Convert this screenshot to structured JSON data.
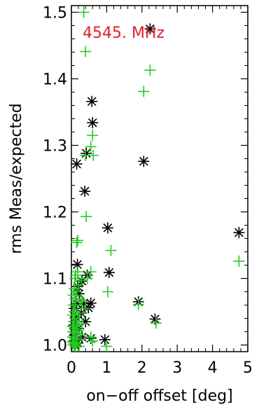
{
  "chart_data": {
    "type": "scatter",
    "annotation": {
      "text": "4545. MHz",
      "color": "#e0202a"
    },
    "xlabel": "on−off offset [deg]",
    "ylabel": "rms Meas/expected",
    "xlim": [
      0,
      5
    ],
    "ylim": [
      0.99,
      1.51
    ],
    "x_ticks": [
      0,
      1,
      2,
      3,
      4,
      5
    ],
    "x_tick_labels": [
      "0",
      "1",
      "2",
      "3",
      "4",
      "5"
    ],
    "y_ticks": [
      1.0,
      1.1,
      1.2,
      1.3,
      1.4,
      1.5
    ],
    "y_tick_labels": [
      "1.0",
      "1.1",
      "1.2",
      "1.3",
      "1.4",
      "1.5"
    ],
    "grid": false,
    "series": [
      {
        "marker": "asterisk",
        "color": "#000000",
        "points": [
          [
            2.23,
            1.475
          ],
          [
            0.58,
            1.366
          ],
          [
            0.6,
            1.334
          ],
          [
            0.42,
            1.288
          ],
          [
            0.15,
            1.272
          ],
          [
            2.05,
            1.276
          ],
          [
            0.38,
            1.231
          ],
          [
            1.03,
            1.176
          ],
          [
            4.75,
            1.169
          ],
          [
            0.17,
            1.121
          ],
          [
            1.07,
            1.109
          ],
          [
            0.45,
            1.105
          ],
          [
            0.3,
            1.096
          ],
          [
            0.18,
            1.088
          ],
          [
            0.22,
            1.077
          ],
          [
            1.9,
            1.065
          ],
          [
            0.35,
            1.062
          ],
          [
            0.15,
            1.062
          ],
          [
            0.48,
            1.056
          ],
          [
            0.55,
            1.063
          ],
          [
            0.08,
            1.055
          ],
          [
            0.28,
            1.048
          ],
          [
            0.12,
            1.042
          ],
          [
            0.4,
            1.035
          ],
          [
            0.07,
            1.03
          ],
          [
            2.37,
            1.039
          ],
          [
            0.2,
            1.025
          ],
          [
            0.05,
            1.02
          ],
          [
            0.12,
            1.015
          ],
          [
            0.3,
            1.012
          ],
          [
            0.55,
            1.01
          ],
          [
            0.95,
            1.008
          ],
          [
            0.08,
            1.006
          ],
          [
            0.18,
            1.003
          ],
          [
            0.1,
            1.0
          ]
        ]
      },
      {
        "marker": "plus",
        "color": "#22cc22",
        "points": [
          [
            0.35,
            1.5
          ],
          [
            0.4,
            1.441
          ],
          [
            2.23,
            1.413
          ],
          [
            2.05,
            1.381
          ],
          [
            0.6,
            1.315
          ],
          [
            0.55,
            1.298
          ],
          [
            0.62,
            1.285
          ],
          [
            0.4,
            1.285
          ],
          [
            0.42,
            1.193
          ],
          [
            0.18,
            1.157
          ],
          [
            0.15,
            1.154
          ],
          [
            1.12,
            1.142
          ],
          [
            4.75,
            1.126
          ],
          [
            0.18,
            1.11
          ],
          [
            0.12,
            1.105
          ],
          [
            0.45,
            1.1
          ],
          [
            0.28,
            1.097
          ],
          [
            0.1,
            1.1
          ],
          [
            0.55,
            1.11
          ],
          [
            1.03,
            1.08
          ],
          [
            0.2,
            1.09
          ],
          [
            0.08,
            1.085
          ],
          [
            0.15,
            1.08
          ],
          [
            0.05,
            1.075
          ],
          [
            0.1,
            1.07
          ],
          [
            0.25,
            1.068
          ],
          [
            0.3,
            1.065
          ],
          [
            0.05,
            1.06
          ],
          [
            0.12,
            1.06
          ],
          [
            0.4,
            1.055
          ],
          [
            1.9,
            1.061
          ],
          [
            0.08,
            1.05
          ],
          [
            0.18,
            1.048
          ],
          [
            0.04,
            1.045
          ],
          [
            0.22,
            1.04
          ],
          [
            0.1,
            1.04
          ],
          [
            0.06,
            1.035
          ],
          [
            0.3,
            1.032
          ],
          [
            2.4,
            1.033
          ],
          [
            0.15,
            1.03
          ],
          [
            0.03,
            1.028
          ],
          [
            0.08,
            1.025
          ],
          [
            0.2,
            1.022
          ],
          [
            0.05,
            1.02
          ],
          [
            0.12,
            1.018
          ],
          [
            0.28,
            1.015
          ],
          [
            0.55,
            1.012
          ],
          [
            0.04,
            1.012
          ],
          [
            0.09,
            1.01
          ],
          [
            0.16,
            1.008
          ],
          [
            0.6,
            1.006
          ],
          [
            0.03,
            1.005
          ],
          [
            0.07,
            1.003
          ],
          [
            0.14,
            1.002
          ],
          [
            0.05,
            1.0
          ],
          [
            0.22,
            0.998
          ],
          [
            0.11,
            0.997
          ],
          [
            1.0,
            0.998
          ]
        ]
      }
    ]
  }
}
